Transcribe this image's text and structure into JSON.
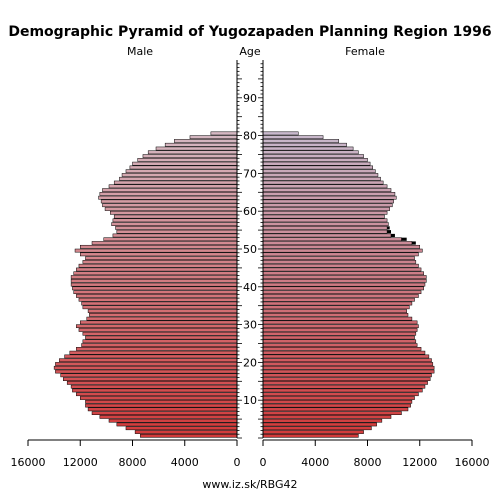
{
  "chart_data": {
    "type": "bar",
    "title": "Demographic Pyramid of Yugozapaden Planning Region 1996",
    "left_label": "Male",
    "center_label": "Age",
    "right_label": "Female",
    "footer": "www.iz.sk/RBG42",
    "x_ticks_left": [
      "16000",
      "12000",
      "8000",
      "4000",
      "0"
    ],
    "x_ticks_right": [
      "0",
      "4000",
      "8000",
      "12000",
      "16000"
    ],
    "age_ticks": [
      "10",
      "20",
      "30",
      "40",
      "50",
      "60",
      "70",
      "80",
      "90"
    ],
    "xlim": [
      0,
      16000
    ],
    "age_range": [
      0,
      99
    ],
    "colors": {
      "male_top": "#d4b8c2",
      "male_bottom": "#d23a3a",
      "female_top": "#c8b9cc",
      "female_bottom": "#d23a3a",
      "excess": "#000000"
    },
    "ages": [
      0,
      1,
      2,
      3,
      4,
      5,
      6,
      7,
      8,
      9,
      10,
      11,
      12,
      13,
      14,
      15,
      16,
      17,
      18,
      19,
      20,
      21,
      22,
      23,
      24,
      25,
      26,
      27,
      28,
      29,
      30,
      31,
      32,
      33,
      34,
      35,
      36,
      37,
      38,
      39,
      40,
      41,
      42,
      43,
      44,
      45,
      46,
      47,
      48,
      49,
      50,
      51,
      52,
      53,
      54,
      55,
      56,
      57,
      58,
      59,
      60,
      61,
      62,
      63,
      64,
      65,
      66,
      67,
      68,
      69,
      70,
      71,
      72,
      73,
      74,
      75,
      76,
      77,
      78,
      79,
      80
    ],
    "male": [
      7400,
      7800,
      8500,
      9200,
      9800,
      10500,
      11100,
      11400,
      11600,
      11600,
      12000,
      12300,
      12600,
      12700,
      13000,
      13300,
      13500,
      13900,
      14000,
      13900,
      13600,
      13200,
      12800,
      12300,
      11900,
      11800,
      11600,
      11800,
      12100,
      12300,
      12000,
      11500,
      11300,
      11400,
      11800,
      11900,
      12100,
      12300,
      12500,
      12600,
      12700,
      12700,
      12700,
      12500,
      12300,
      12100,
      11800,
      11600,
      12000,
      12400,
      12000,
      11100,
      10200,
      9500,
      9200,
      9300,
      9600,
      9500,
      9400,
      9700,
      10100,
      10300,
      10400,
      10600,
      10500,
      10300,
      9800,
      9400,
      9000,
      8800,
      8500,
      8200,
      8000,
      7600,
      7200,
      6800,
      6200,
      5500,
      4800,
      3600,
      2000
    ],
    "female": [
      7300,
      7700,
      8300,
      8700,
      9100,
      9800,
      10600,
      11100,
      11300,
      11400,
      11600,
      11900,
      12200,
      12400,
      12600,
      12800,
      12900,
      13100,
      13100,
      13000,
      12900,
      12700,
      12400,
      12100,
      11800,
      11700,
      11600,
      11700,
      11800,
      11900,
      11800,
      11400,
      11100,
      11000,
      11200,
      11400,
      11600,
      11900,
      12100,
      12300,
      12400,
      12500,
      12500,
      12300,
      12100,
      11900,
      11700,
      11600,
      11900,
      12200,
      12000,
      11400,
      10600,
      9800,
      9500,
      9500,
      9600,
      9500,
      9300,
      9500,
      9700,
      9900,
      10000,
      10200,
      10100,
      9800,
      9500,
      9200,
      9000,
      8800,
      8600,
      8400,
      8200,
      8000,
      7700,
      7300,
      6900,
      6400,
      5800,
      4600,
      2700
    ],
    "female_excess": [
      0,
      0,
      0,
      0,
      0,
      0,
      0,
      0,
      0,
      0,
      0,
      0,
      0,
      0,
      0,
      0,
      0,
      0,
      0,
      0,
      0,
      0,
      0,
      0,
      0,
      0,
      0,
      0,
      0,
      0,
      0,
      0,
      0,
      0,
      0,
      0,
      0,
      0,
      0,
      0,
      0,
      0,
      0,
      0,
      0,
      0,
      0,
      0,
      0,
      0,
      0,
      300,
      400,
      300,
      300,
      200,
      0,
      0,
      0,
      0,
      0,
      0,
      0,
      0,
      0,
      0,
      0,
      0,
      0,
      0,
      0,
      0,
      0,
      0,
      0,
      0,
      0,
      0,
      0,
      0,
      0
    ]
  }
}
